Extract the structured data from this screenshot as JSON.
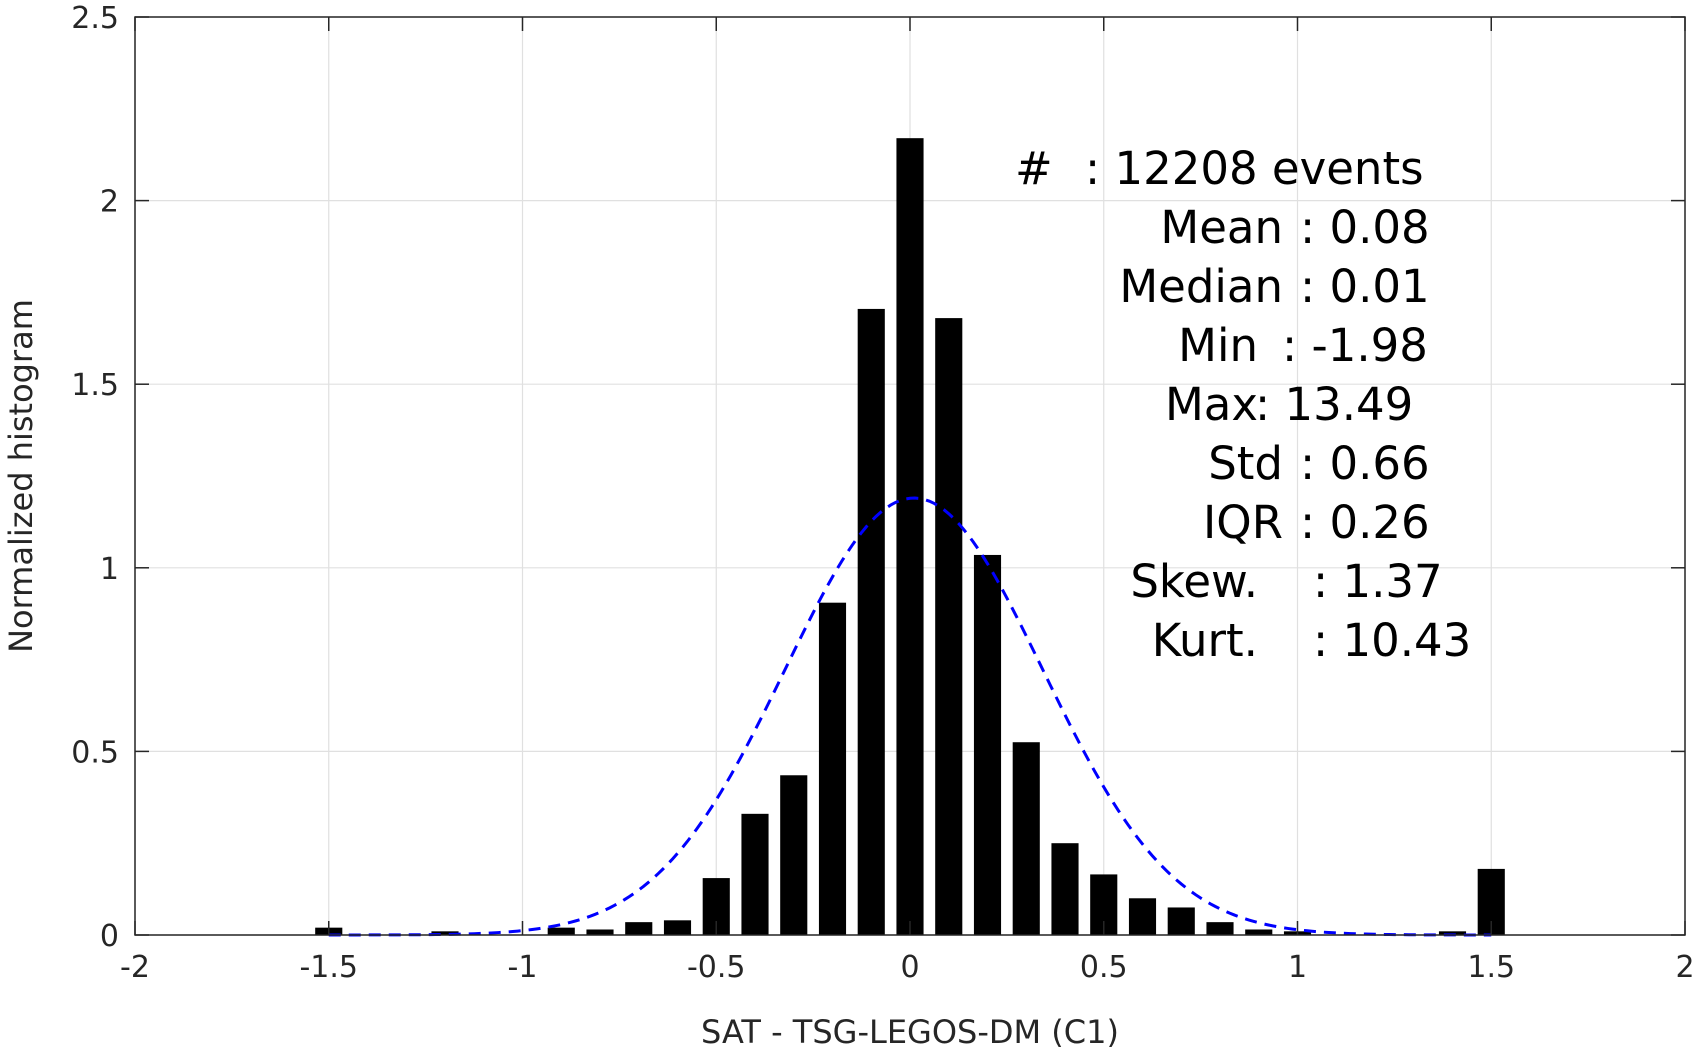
{
  "chart_data": {
    "type": "bar",
    "title": "",
    "xlabel": "SAT - TSG-LEGOS-DM (C1)",
    "ylabel": "Normalized histogram",
    "xlim": [
      -2,
      2
    ],
    "ylim": [
      0,
      2.5
    ],
    "xticks": [
      -2,
      -1.5,
      -1,
      -0.5,
      0,
      0.5,
      1,
      1.5,
      2
    ],
    "xtick_labels": [
      "-2",
      "-1.5",
      "-1",
      "-0.5",
      "0",
      "0.5",
      "1",
      "1.5",
      "2"
    ],
    "yticks": [
      0,
      0.5,
      1,
      1.5,
      2,
      2.5
    ],
    "ytick_labels": [
      "0",
      "0.5",
      "1",
      "1.5",
      "2",
      "2.5"
    ],
    "grid": true,
    "bar_color": "#000000",
    "bar_width": 0.07,
    "bars": {
      "x": [
        -1.5,
        -1.2,
        -0.9,
        -0.8,
        -0.7,
        -0.6,
        -0.5,
        -0.4,
        -0.3,
        -0.2,
        -0.1,
        0.0,
        0.1,
        0.2,
        0.3,
        0.4,
        0.5,
        0.6,
        0.7,
        0.8,
        0.9,
        1.0,
        1.4,
        1.5
      ],
      "values": [
        0.02,
        0.01,
        0.02,
        0.015,
        0.035,
        0.04,
        0.155,
        0.33,
        0.435,
        0.905,
        1.705,
        2.17,
        1.68,
        1.035,
        0.525,
        0.25,
        0.165,
        0.1,
        0.075,
        0.035,
        0.015,
        0.01,
        0.01,
        0.18
      ]
    },
    "fit_curve": {
      "style": "dashed",
      "color": "#0000ff",
      "mean": 0.01,
      "std": 0.333,
      "peak": 1.19,
      "x_range": [
        -1.5,
        1.5
      ]
    },
    "annotations": [
      {
        "label": "#",
        "value": ": 12208 events"
      },
      {
        "label": "Mean",
        "value": ": 0.08"
      },
      {
        "label": "Median",
        "value": ": 0.01"
      },
      {
        "label": "Min",
        "value": ": -1.98"
      },
      {
        "label": "Max",
        "value": ": 13.49"
      },
      {
        "label": "Std",
        "value": ": 0.66"
      },
      {
        "label": "IQR",
        "value": ": 0.26"
      },
      {
        "label": "Skew.",
        "value": ": 1.37"
      },
      {
        "label": "Kurt.",
        "value": ": 10.43"
      }
    ]
  }
}
